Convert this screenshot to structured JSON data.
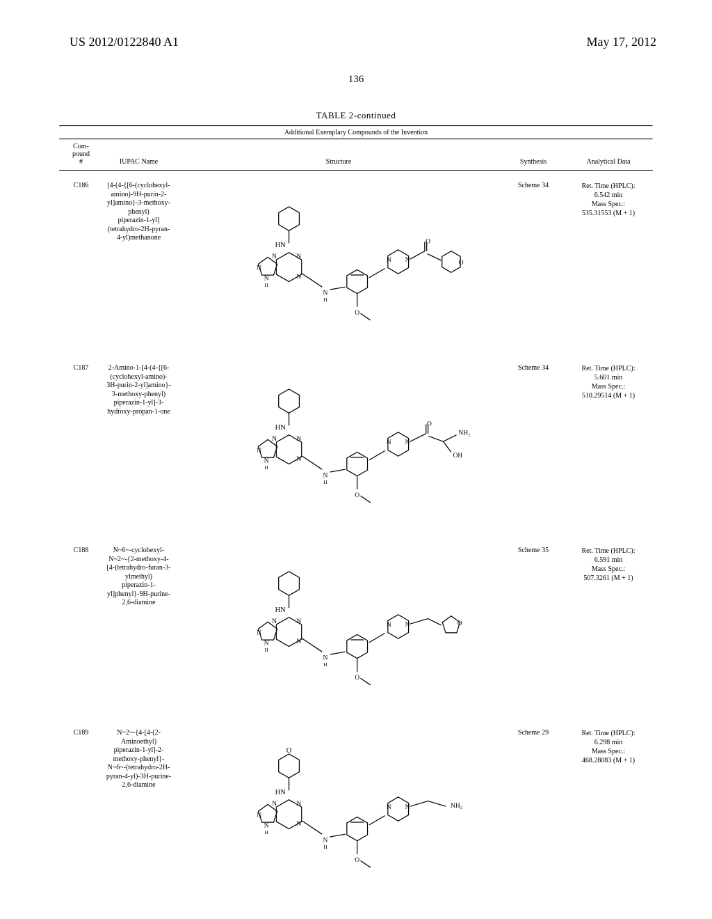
{
  "header": {
    "pub_number": "US 2012/0122840 A1",
    "pub_date": "May 17, 2012"
  },
  "page_number": "136",
  "table": {
    "title": "TABLE 2-continued",
    "caption": "Additional Exemplary Compounds of the Invention",
    "columns": {
      "id": "Com-\npound\n#",
      "name": "IUPAC Name",
      "structure": "Structure",
      "synthesis": "Synthesis",
      "analytical": "Analytical Data"
    },
    "rows": [
      {
        "id": "C186",
        "name": "[4-(4-{[6-(cyclohexyl-amino)-9H-purin-2-yl]amino}-3-methoxy-phenyl) piperazin-1-yl](tetrahydro-2H-pyran-4-yl)methanone",
        "synthesis": "Scheme 34",
        "analytical": "Ret. Time (HPLC): 6.542 min; Mass Spec.: 535.31553 (M + 1)",
        "structure_labels": [
          "HN",
          "N",
          "N",
          "N",
          "N",
          "N",
          "N",
          "O",
          "O",
          "O",
          "O",
          "NH",
          "NH"
        ]
      },
      {
        "id": "C187",
        "name": "2-Amino-1-[4-(4-{[6-(cyclohexyl-amino)-3H-purin-2-yl]amino}-3-methoxy-phenyl) piperazin-1-yl]-3-hydroxy-propan-1-one",
        "synthesis": "Scheme 34",
        "analytical": "Ret. Time (HPLC): 5.601 min; Mass Spec.: 510.29514 (M + 1)",
        "structure_labels": [
          "HN",
          "N",
          "N",
          "N",
          "N",
          "N",
          "N",
          "O",
          "O",
          "OH",
          "NH₂",
          "NH",
          "NH"
        ]
      },
      {
        "id": "C188",
        "name": "N~6~-cyclohexyl-N~2~-{2-methoxy-4-[4-(tetrahydro-furan-3-ylmethyl) piperazin-1-yl]phenyl}-9H-purine-2,6-diamine",
        "synthesis": "Scheme 35",
        "analytical": "Ret. Time (HPLC): 6.591 min; Mass Spec.: 507.3261 (M + 1)",
        "structure_labels": [
          "HN",
          "N",
          "N",
          "N",
          "N",
          "N",
          "N",
          "O",
          "O",
          "NH",
          "NH"
        ]
      },
      {
        "id": "C189",
        "name": "N~2~-{4-[4-(2-Aminoethyl) piperazin-1-yl]-2-methoxy-phenyl}-N~6~-(tetrahydro-2H-pyran-4-yl)-3H-purine-2,6-diamine",
        "synthesis": "Scheme 29",
        "analytical": "Ret. Time (HPLC): 6.298 min; Mass Spec.: 468.28083 (M + 1)",
        "structure_labels": [
          "HN",
          "N",
          "N",
          "N",
          "N",
          "N",
          "N",
          "O",
          "O",
          "NH₂",
          "NH",
          "NH"
        ]
      }
    ]
  },
  "styling": {
    "background_color": "#ffffff",
    "text_color": "#000000",
    "font_family": "Times New Roman",
    "header_fontsize": 18,
    "page_number_fontsize": 15,
    "table_title_fontsize": 13,
    "body_fontsize": 10,
    "rule_color": "#000000"
  }
}
